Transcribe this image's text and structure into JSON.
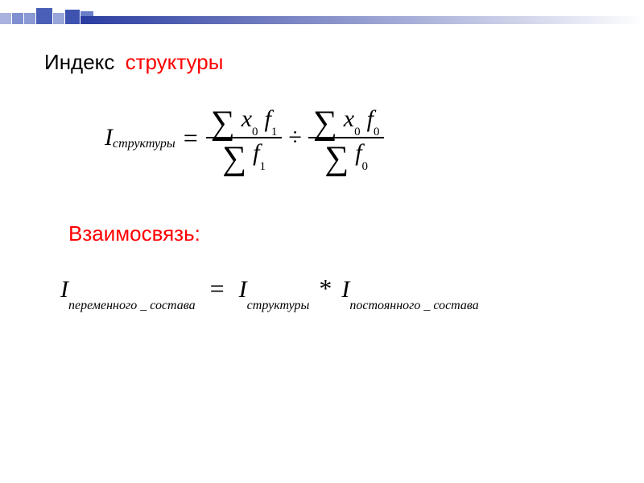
{
  "decor": {
    "strip_gradient_from": "#2a3ca0",
    "strip_gradient_to": "#ffffff",
    "squares": [
      {
        "size": 14,
        "color": "#aab3dd"
      },
      {
        "size": 14,
        "color": "#7f8fd0"
      },
      {
        "size": 14,
        "color": "#8b9ad4"
      },
      {
        "size": 20,
        "color": "#4a60b8"
      },
      {
        "size": 14,
        "color": "#98a5d8"
      },
      {
        "size": 18,
        "color": "#3e53b0"
      },
      {
        "size": 16,
        "color": "#6a7dc8"
      }
    ]
  },
  "title": {
    "word1": "Индекс",
    "word2": "структуры",
    "color1": "#000000",
    "color2": "#ff0000"
  },
  "formula1": {
    "lhs_var": "I",
    "lhs_sub": "структуры",
    "eq": "=",
    "frac1": {
      "num_sigma": "∑",
      "num_x": "x",
      "num_x_sub": "0",
      "num_f": "f",
      "num_f_sub": "1",
      "den_sigma": "∑",
      "den_f": "f",
      "den_f_sub": "1"
    },
    "div": "÷",
    "frac2": {
      "num_sigma": "∑",
      "num_x": "x",
      "num_x_sub": "0",
      "num_f": "f",
      "num_f_sub": "0",
      "den_sigma": "∑",
      "den_f": "f",
      "den_f_sub": "0"
    }
  },
  "subtitle": {
    "text": "Взаимосвязь:",
    "color": "#ff0000"
  },
  "formula2": {
    "I1": "I",
    "sub1": "переменного _ состава",
    "eq": "=",
    "I2": "I",
    "sub2": "структуры",
    "star": "*",
    "I3": "I",
    "sub3": "постоянного _ состава"
  }
}
